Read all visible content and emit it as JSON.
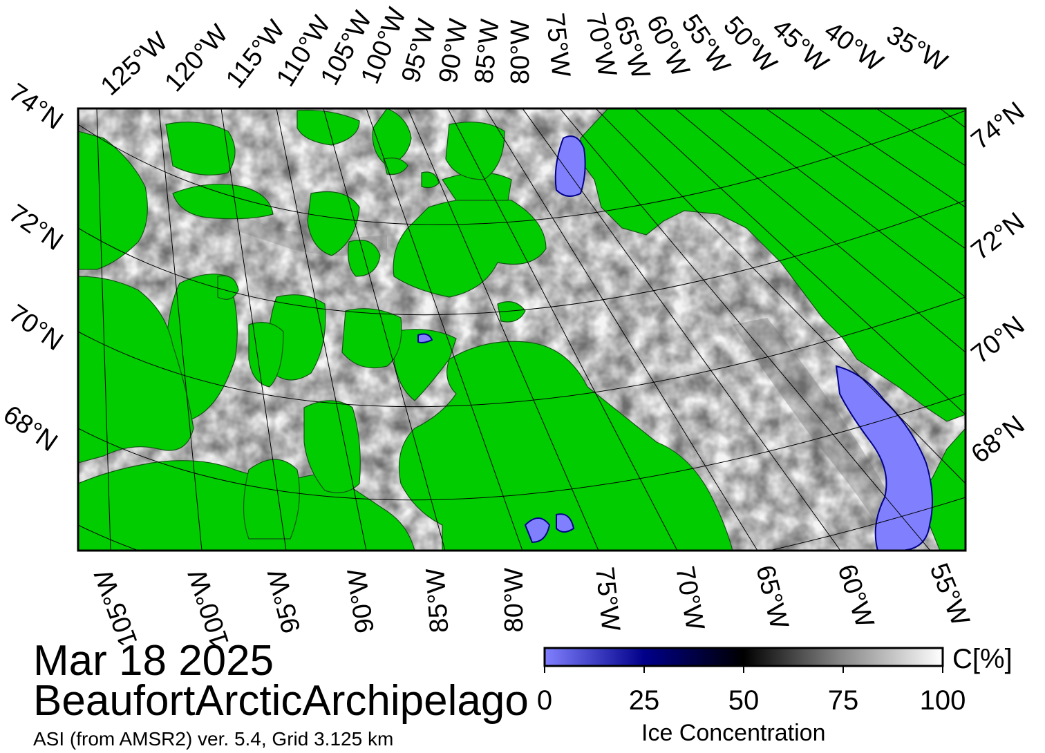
{
  "map": {
    "date": "Mar 18 2025",
    "region": "BeaufortArcticArchipelago",
    "source": "ASI (from AMSR2) ver. 5.4,  Grid 3.125 km",
    "top_lon_labels": [
      "125°W",
      "120°W",
      "115°W",
      "110°W",
      "105°W",
      "100°W",
      "95°W",
      "90°W",
      "85°W",
      "80°W",
      "75°W",
      "70°W",
      "65°W",
      "60°W",
      "55°W",
      "50°W",
      "45°W",
      "40°W",
      "35°W"
    ],
    "bottom_lon_labels": [
      "105°W",
      "100°W",
      "95°W",
      "90°W",
      "85°W",
      "80°W",
      "75°W",
      "70°W",
      "65°W",
      "60°W",
      "55°W"
    ],
    "left_lat_labels": [
      "74°N",
      "72°N",
      "70°N",
      "68°N"
    ],
    "right_lat_labels": [
      "74°N",
      "72°N",
      "70°N",
      "68°N"
    ],
    "colors": {
      "land": "#00cc00",
      "ice_high": "#ffffff",
      "ice_mid": "#000000",
      "ice_low": "#0000ff",
      "open_low": "#8080ff",
      "frame": "#000000"
    }
  },
  "colorbar": {
    "title": "Ice Concentration",
    "unit": "C[%]",
    "ticks": [
      "0",
      "25",
      "50",
      "75",
      "100"
    ],
    "range": [
      0,
      100
    ]
  }
}
